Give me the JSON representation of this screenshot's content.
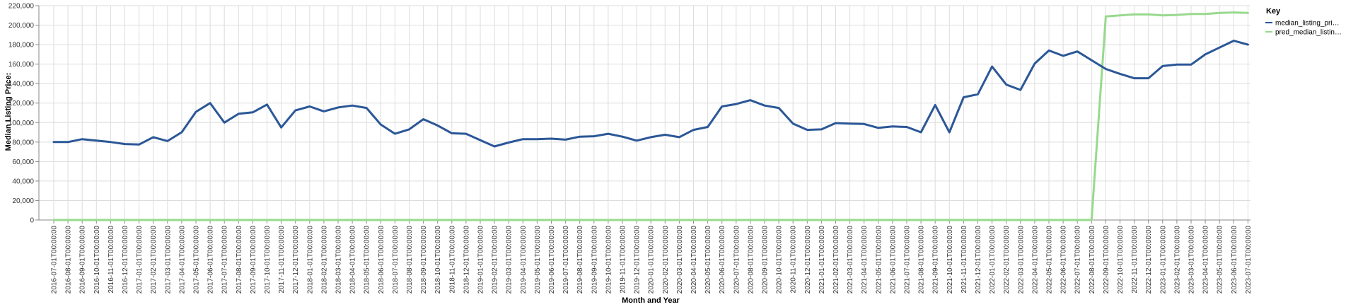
{
  "chart_data": {
    "type": "line",
    "xlabel": "Month and Year",
    "ylabel": "Median Listing Price:",
    "ylim": [
      0,
      220000
    ],
    "yticks": [
      0,
      20000,
      40000,
      60000,
      80000,
      100000,
      120000,
      140000,
      160000,
      180000,
      200000,
      220000
    ],
    "ytick_labels": [
      "0",
      "20,000",
      "40,000",
      "60,000",
      "80,000",
      "100,000",
      "120,000",
      "140,000",
      "160,000",
      "180,000",
      "200,000",
      "220,000"
    ],
    "grid": true,
    "legend": {
      "title": "Key",
      "position": "right"
    },
    "x": [
      "2016-07-01T00:00:00",
      "2016-08-01T00:00:00",
      "2016-09-01T00:00:00",
      "2016-10-01T00:00:00",
      "2016-11-01T00:00:00",
      "2016-12-01T00:00:00",
      "2017-01-01T00:00:00",
      "2017-02-01T00:00:00",
      "2017-03-01T00:00:00",
      "2017-04-01T00:00:00",
      "2017-05-01T00:00:00",
      "2017-06-01T00:00:00",
      "2017-07-01T00:00:00",
      "2017-08-01T00:00:00",
      "2017-09-01T00:00:00",
      "2017-10-01T00:00:00",
      "2017-11-01T00:00:00",
      "2017-12-01T00:00:00",
      "2018-01-01T00:00:00",
      "2018-02-01T00:00:00",
      "2018-03-01T00:00:00",
      "2018-04-01T00:00:00",
      "2018-05-01T00:00:00",
      "2018-06-01T00:00:00",
      "2018-07-01T00:00:00",
      "2018-08-01T00:00:00",
      "2018-09-01T00:00:00",
      "2018-10-01T00:00:00",
      "2018-11-01T00:00:00",
      "2018-12-01T00:00:00",
      "2019-01-01T00:00:00",
      "2019-02-01T00:00:00",
      "2019-03-01T00:00:00",
      "2019-04-01T00:00:00",
      "2019-05-01T00:00:00",
      "2019-06-01T00:00:00",
      "2019-07-01T00:00:00",
      "2019-08-01T00:00:00",
      "2019-09-01T00:00:00",
      "2019-10-01T00:00:00",
      "2019-11-01T00:00:00",
      "2019-12-01T00:00:00",
      "2020-01-01T00:00:00",
      "2020-02-01T00:00:00",
      "2020-03-01T00:00:00",
      "2020-04-01T00:00:00",
      "2020-05-01T00:00:00",
      "2020-06-01T00:00:00",
      "2020-07-01T00:00:00",
      "2020-08-01T00:00:00",
      "2020-09-01T00:00:00",
      "2020-10-01T00:00:00",
      "2020-11-01T00:00:00",
      "2020-12-01T00:00:00",
      "2021-01-01T00:00:00",
      "2021-02-01T00:00:00",
      "2021-03-01T00:00:00",
      "2021-04-01T00:00:00",
      "2021-05-01T00:00:00",
      "2021-06-01T00:00:00",
      "2021-07-01T00:00:00",
      "2021-08-01T00:00:00",
      "2021-09-01T00:00:00",
      "2021-10-01T00:00:00",
      "2021-11-01T00:00:00",
      "2021-12-01T00:00:00",
      "2022-01-01T00:00:00",
      "2022-02-01T00:00:00",
      "2022-03-01T00:00:00",
      "2022-04-01T00:00:00",
      "2022-05-01T00:00:00",
      "2022-06-01T00:00:00",
      "2022-07-01T00:00:00",
      "2022-08-01T00:00:00",
      "2022-09-01T00:00:00",
      "2022-10-01T00:00:00",
      "2022-11-01T00:00:00",
      "2022-12-01T00:00:00",
      "2023-01-01T00:00:00",
      "2023-02-01T00:00:00",
      "2023-03-01T00:00:00",
      "2023-04-01T00:00:00",
      "2023-05-01T00:00:00",
      "2023-06-01T00:00:00",
      "2023-07-01T00:00:00"
    ],
    "series": [
      {
        "name": "median_listing_pri…",
        "color": "#2b5797",
        "values": [
          80000,
          80000,
          83000,
          81500,
          80000,
          78000,
          77500,
          85000,
          81000,
          90000,
          111000,
          120000,
          100000,
          109000,
          110500,
          118500,
          95000,
          112500,
          116500,
          111500,
          115500,
          117500,
          115000,
          98000,
          88500,
          93000,
          103500,
          97000,
          89000,
          88500,
          82000,
          75500,
          79500,
          83000,
          83000,
          83500,
          82500,
          85500,
          86000,
          88500,
          85500,
          81500,
          85000,
          87500,
          85000,
          92500,
          95500,
          116500,
          119000,
          123000,
          117500,
          115000,
          99000,
          92500,
          93000,
          99500,
          99000,
          98500,
          94500,
          96000,
          95500,
          90000,
          118000,
          90000,
          126000,
          129000,
          157500,
          139000,
          133500,
          160500,
          174000,
          168500,
          173000,
          164000,
          155000,
          150000,
          145500,
          145500,
          158000,
          159500,
          159500,
          170000,
          177000,
          184000,
          180000
        ]
      },
      {
        "name": "pred_median_listin…",
        "color": "#98d98e",
        "values": [
          0,
          0,
          0,
          0,
          0,
          0,
          0,
          0,
          0,
          0,
          0,
          0,
          0,
          0,
          0,
          0,
          0,
          0,
          0,
          0,
          0,
          0,
          0,
          0,
          0,
          0,
          0,
          0,
          0,
          0,
          0,
          0,
          0,
          0,
          0,
          0,
          0,
          0,
          0,
          0,
          0,
          0,
          0,
          0,
          0,
          0,
          0,
          0,
          0,
          0,
          0,
          0,
          0,
          0,
          0,
          0,
          0,
          0,
          0,
          0,
          0,
          0,
          0,
          0,
          0,
          0,
          0,
          0,
          0,
          0,
          0,
          0,
          0,
          0,
          209000,
          210000,
          211000,
          211000,
          210000,
          210500,
          211500,
          211500,
          212500,
          213000,
          212500
        ]
      }
    ]
  }
}
